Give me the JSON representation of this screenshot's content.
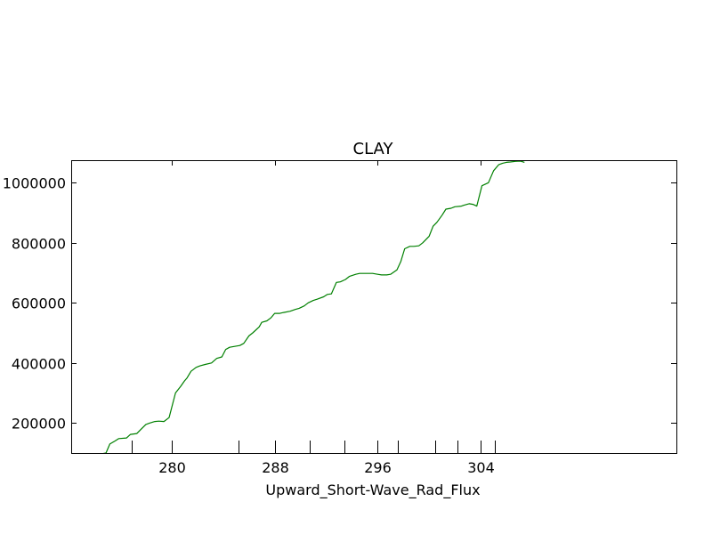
{
  "chart_data": {
    "type": "line",
    "title": "CLAY",
    "xlabel": "Upward_Short-Wave_Rad_Flux",
    "ylabel": "",
    "xlim": [
      272.2,
      319.2
    ],
    "ylim": [
      100000,
      1075000
    ],
    "x_ticks": [
      {
        "value": 280,
        "label": "280"
      },
      {
        "value": 288,
        "label": "288"
      },
      {
        "value": 296,
        "label": "296"
      },
      {
        "value": 304,
        "label": "304"
      }
    ],
    "x_minor_ticks": [
      276.9,
      285.2,
      290.7,
      293.4,
      297.6,
      300.5,
      302.2,
      305.1
    ],
    "y_ticks": [
      {
        "value": 200000,
        "label": "200000"
      },
      {
        "value": 400000,
        "label": "400000"
      },
      {
        "value": 600000,
        "label": "600000"
      },
      {
        "value": 800000,
        "label": "800000"
      },
      {
        "value": 1000000,
        "label": "1000000"
      }
    ],
    "grid": false,
    "series": [
      {
        "color": "#008000",
        "x": [
          273.5,
          274.0,
          274.4,
          274.9,
          275.2,
          275.6,
          275.9,
          276.5,
          276.8,
          277.3,
          277.6,
          278.0,
          278.3,
          278.7,
          279.0,
          279.4,
          279.8,
          280.3,
          280.7,
          281.0,
          281.2,
          281.5,
          281.9,
          282.2,
          282.6,
          283.1,
          283.5,
          283.9,
          284.2,
          284.5,
          284.9,
          285.3,
          285.6,
          286.0,
          286.3,
          286.8,
          287.0,
          287.4,
          287.7,
          288.0,
          288.4,
          288.7,
          289.2,
          289.6,
          289.9,
          290.3,
          290.6,
          291.0,
          291.3,
          291.8,
          292.1,
          292.4,
          292.8,
          293.1,
          293.5,
          293.8,
          294.3,
          294.6,
          294.9,
          295.3,
          295.6,
          296.0,
          296.3,
          296.7,
          297.0,
          297.5,
          297.8,
          298.1,
          298.5,
          298.8,
          299.2,
          299.5,
          300.0,
          300.3,
          300.6,
          301.0,
          301.3,
          301.7,
          302.0,
          302.5,
          302.7,
          303.1,
          303.4,
          303.7,
          304.1,
          304.6,
          305.0,
          305.4,
          305.7,
          306.0,
          306.3,
          306.7,
          307.1,
          307.4
        ],
        "values": [
          93000,
          94000,
          96000,
          100000,
          130000,
          140000,
          148000,
          150000,
          162000,
          165000,
          178000,
          195000,
          200000,
          205000,
          206000,
          205000,
          218000,
          300000,
          322000,
          340000,
          350000,
          372000,
          385000,
          390000,
          395000,
          400000,
          415000,
          420000,
          445000,
          452000,
          455000,
          458000,
          465000,
          490000,
          500000,
          520000,
          535000,
          540000,
          550000,
          565000,
          565000,
          568000,
          572000,
          578000,
          582000,
          590000,
          600000,
          608000,
          612000,
          620000,
          628000,
          630000,
          668000,
          670000,
          678000,
          688000,
          695000,
          698000,
          698000,
          698000,
          698000,
          695000,
          693000,
          693000,
          695000,
          710000,
          738000,
          780000,
          788000,
          788000,
          790000,
          800000,
          822000,
          855000,
          868000,
          892000,
          912000,
          915000,
          920000,
          922000,
          925000,
          930000,
          928000,
          922000,
          990000,
          1000000,
          1040000,
          1060000,
          1065000,
          1068000,
          1069000,
          1071000,
          1072000,
          1068000
        ]
      }
    ]
  }
}
